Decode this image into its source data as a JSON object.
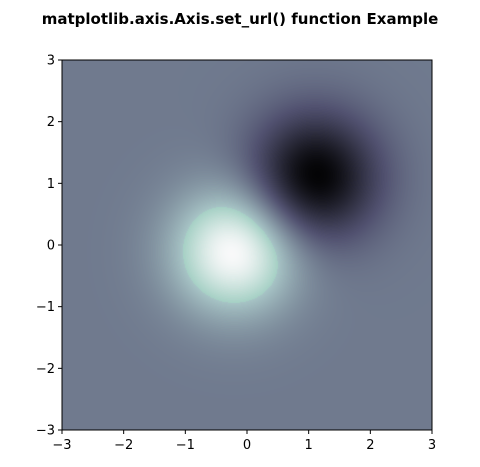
{
  "chart_data": {
    "type": "heatmap",
    "title": "matplotlib.axis.Axis.set_url() function Example",
    "xlabel": "",
    "ylabel": "",
    "xlim": [
      -3,
      3
    ],
    "ylim": [
      -3,
      3
    ],
    "x_ticks": [
      -3,
      -2,
      -1,
      0,
      1,
      2,
      3
    ],
    "y_ticks": [
      -3,
      -2,
      -1,
      0,
      1,
      2,
      3
    ],
    "x_tick_labels": [
      "−3",
      "−2",
      "−1",
      "0",
      "1",
      "2",
      "3"
    ],
    "y_tick_labels": [
      "−3",
      "−2",
      "−1",
      "0",
      "1",
      "2",
      "3"
    ],
    "colormap": "bone",
    "grid": false,
    "field": {
      "description": "Z = exp(-x^2 - y^2) - exp(-(x-1)^2 - (y-1)^2)",
      "value_range": [
        -1,
        1
      ],
      "peaks": [
        {
          "x": -0.2,
          "y": -0.1,
          "value": 1.0,
          "tone": "high"
        },
        {
          "x": 1.1,
          "y": 1.1,
          "value": -1.0,
          "tone": "low"
        }
      ]
    },
    "background_color": "#6e7b8b"
  }
}
